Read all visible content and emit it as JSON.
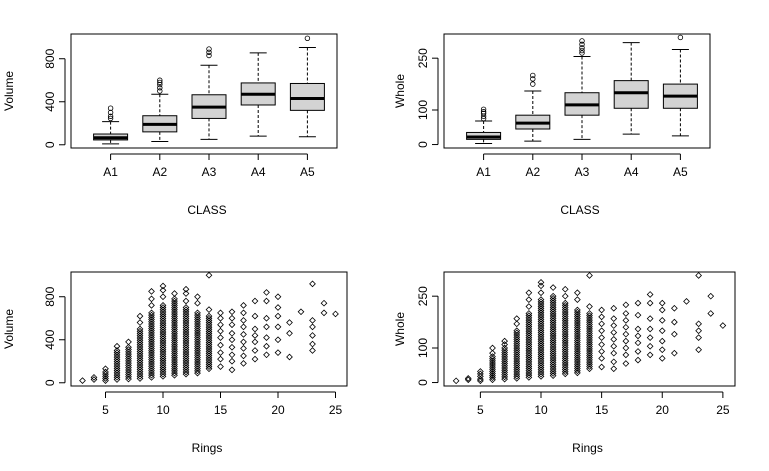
{
  "chart_data": [
    {
      "type": "box",
      "xlabel": "CLASS",
      "ylabel": "Volume",
      "categories": [
        "A1",
        "A2",
        "A3",
        "A4",
        "A5"
      ],
      "yticks": [
        0,
        400,
        800
      ],
      "ylim": [
        -30,
        1030
      ],
      "boxes": [
        {
          "min": 8,
          "q1": 45,
          "median": 65,
          "q3": 100,
          "max": 215,
          "outliers": [
            245,
            265,
            300,
            340
          ]
        },
        {
          "min": 30,
          "q1": 120,
          "median": 190,
          "q3": 270,
          "max": 470,
          "outliers": [
            500,
            530,
            560,
            580,
            600
          ]
        },
        {
          "min": 50,
          "q1": 245,
          "median": 350,
          "q3": 465,
          "max": 740,
          "outliers": [
            830,
            860,
            890
          ]
        },
        {
          "min": 80,
          "q1": 370,
          "median": 470,
          "q3": 575,
          "max": 855,
          "outliers": []
        },
        {
          "min": 75,
          "q1": 320,
          "median": 430,
          "q3": 570,
          "max": 905,
          "outliers": [
            990
          ]
        }
      ]
    },
    {
      "type": "box",
      "xlabel": "CLASS",
      "ylabel": "Whole",
      "categories": [
        "A1",
        "A2",
        "A3",
        "A4",
        "A5"
      ],
      "yticks": [
        0,
        100,
        250
      ],
      "ylim": [
        -10,
        320
      ],
      "boxes": [
        {
          "min": 3,
          "q1": 15,
          "median": 22,
          "q3": 35,
          "max": 68,
          "outliers": [
            75,
            82,
            90,
            95,
            102
          ]
        },
        {
          "min": 10,
          "q1": 45,
          "median": 62,
          "q3": 85,
          "max": 155,
          "outliers": [
            175,
            190,
            200
          ]
        },
        {
          "min": 15,
          "q1": 85,
          "median": 115,
          "q3": 150,
          "max": 255,
          "outliers": [
            265,
            272,
            280,
            290,
            300
          ]
        },
        {
          "min": 30,
          "q1": 105,
          "median": 150,
          "q3": 185,
          "max": 295,
          "outliers": []
        },
        {
          "min": 25,
          "q1": 105,
          "median": 140,
          "q3": 175,
          "max": 275,
          "outliers": [
            310
          ]
        }
      ]
    },
    {
      "type": "scatter",
      "xlabel": "Rings",
      "ylabel": "Volume",
      "xticks": [
        5,
        10,
        15,
        20,
        25
      ],
      "yticks": [
        0,
        400,
        800
      ],
      "xlim": [
        2,
        26
      ],
      "ylim": [
        -30,
        1030
      ],
      "columns": [
        {
          "x": 3,
          "ys": [
            20
          ]
        },
        {
          "x": 4,
          "ys": [
            30,
            50
          ]
        },
        {
          "x": 5,
          "ys": [
            20,
            40,
            60,
            80,
            100,
            130
          ]
        },
        {
          "x": 6,
          "lo": 30,
          "hi": 280,
          "extra": [
            300,
            340
          ]
        },
        {
          "x": 7,
          "lo": 35,
          "hi": 330,
          "extra": [
            380
          ]
        },
        {
          "x": 8,
          "lo": 40,
          "hi": 500,
          "extra": [
            560,
            620
          ]
        },
        {
          "x": 9,
          "lo": 50,
          "hi": 650,
          "extra": [
            720,
            780,
            850
          ]
        },
        {
          "x": 10,
          "lo": 60,
          "hi": 720,
          "extra": [
            800,
            860,
            900
          ]
        },
        {
          "x": 11,
          "lo": 70,
          "hi": 780,
          "extra": [
            830
          ]
        },
        {
          "x": 12,
          "lo": 80,
          "hi": 700,
          "extra": [
            760,
            830,
            870
          ]
        },
        {
          "x": 13,
          "lo": 90,
          "hi": 650,
          "extra": [
            740,
            800
          ]
        },
        {
          "x": 14,
          "lo": 130,
          "hi": 620,
          "extra": [
            680,
            1000
          ]
        },
        {
          "x": 15,
          "ys": [
            150,
            220,
            280,
            350,
            420,
            480,
            540,
            600,
            650
          ]
        },
        {
          "x": 16,
          "ys": [
            120,
            200,
            260,
            330,
            400,
            460,
            540,
            600,
            660
          ]
        },
        {
          "x": 17,
          "ys": [
            180,
            250,
            320,
            380,
            450,
            520,
            580,
            650,
            720
          ]
        },
        {
          "x": 18,
          "ys": [
            220,
            300,
            380,
            440,
            500,
            620,
            760
          ]
        },
        {
          "x": 19,
          "ys": [
            260,
            340,
            420,
            520,
            600,
            760,
            840
          ]
        },
        {
          "x": 20,
          "ys": [
            280,
            400,
            520,
            620,
            700,
            800
          ]
        },
        {
          "x": 21,
          "ys": [
            240,
            460,
            560
          ]
        },
        {
          "x": 22,
          "ys": [
            660
          ]
        },
        {
          "x": 23,
          "ys": [
            300,
            360,
            440,
            520,
            580,
            920
          ]
        },
        {
          "x": 24,
          "ys": [
            650,
            740
          ]
        },
        {
          "x": 25,
          "ys": [
            640
          ]
        }
      ]
    },
    {
      "type": "scatter",
      "xlabel": "Rings",
      "ylabel": "Whole",
      "xticks": [
        5,
        10,
        15,
        20,
        25
      ],
      "yticks": [
        0,
        100,
        250
      ],
      "xlim": [
        2,
        26
      ],
      "ylim": [
        -10,
        320
      ],
      "columns": [
        {
          "x": 3,
          "ys": [
            5
          ]
        },
        {
          "x": 4,
          "ys": [
            8,
            12
          ]
        },
        {
          "x": 5,
          "ys": [
            5,
            10,
            18,
            25,
            32
          ]
        },
        {
          "x": 6,
          "lo": 8,
          "hi": 75,
          "extra": [
            85,
            100
          ]
        },
        {
          "x": 7,
          "lo": 10,
          "hi": 100,
          "extra": [
            110,
            120
          ]
        },
        {
          "x": 8,
          "lo": 12,
          "hi": 150,
          "extra": [
            170,
            185
          ]
        },
        {
          "x": 9,
          "lo": 15,
          "hi": 200,
          "extra": [
            220,
            240,
            260
          ]
        },
        {
          "x": 10,
          "lo": 18,
          "hi": 240,
          "extra": [
            260,
            280,
            290
          ]
        },
        {
          "x": 11,
          "lo": 20,
          "hi": 250,
          "extra": [
            275
          ]
        },
        {
          "x": 12,
          "lo": 25,
          "hi": 230,
          "extra": [
            250,
            270
          ]
        },
        {
          "x": 13,
          "lo": 28,
          "hi": 210,
          "extra": [
            240,
            260
          ]
        },
        {
          "x": 14,
          "lo": 40,
          "hi": 200,
          "extra": [
            220,
            310
          ]
        },
        {
          "x": 15,
          "ys": [
            45,
            70,
            90,
            110,
            130,
            150,
            170,
            190,
            210
          ]
        },
        {
          "x": 16,
          "ys": [
            40,
            60,
            85,
            105,
            125,
            145,
            165,
            185,
            215
          ]
        },
        {
          "x": 17,
          "ys": [
            55,
            80,
            100,
            120,
            140,
            160,
            180,
            200,
            225
          ]
        },
        {
          "x": 18,
          "ys": [
            65,
            90,
            115,
            135,
            155,
            195,
            230
          ]
        },
        {
          "x": 19,
          "ys": [
            80,
            105,
            130,
            155,
            185,
            230,
            255
          ]
        },
        {
          "x": 20,
          "ys": [
            70,
            95,
            120,
            150,
            180,
            210,
            230
          ]
        },
        {
          "x": 21,
          "ys": [
            85,
            140,
            175,
            215
          ]
        },
        {
          "x": 22,
          "ys": [
            235
          ]
        },
        {
          "x": 23,
          "ys": [
            95,
            130,
            150,
            170,
            310
          ]
        },
        {
          "x": 24,
          "ys": [
            200,
            250
          ]
        },
        {
          "x": 25,
          "ys": [
            165
          ]
        }
      ]
    }
  ]
}
